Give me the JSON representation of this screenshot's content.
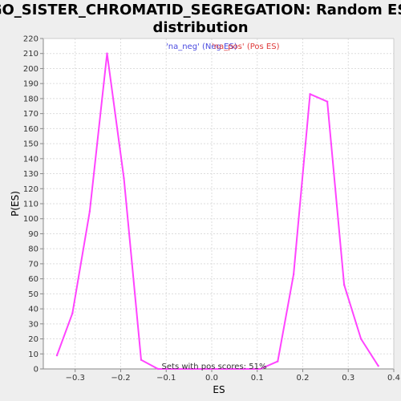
{
  "chart_data": {
    "type": "line",
    "title_line1": "GO_SISTER_CHROMATID_SEGREGATION: Random ES",
    "title_line2": "distribution",
    "xlabel": "ES",
    "ylabel": "P(ES)",
    "xlim": [
      -0.37,
      0.4
    ],
    "ylim": [
      0,
      220
    ],
    "x_ticks": [
      -0.3,
      -0.2,
      -0.1,
      0.0,
      0.1,
      0.2,
      0.3,
      0.4
    ],
    "x_tick_labels": [
      "−0.3",
      "−0.2",
      "−0.1",
      "0.0",
      "0.1",
      "0.2",
      "0.3",
      "0.4"
    ],
    "y_ticks": [
      0,
      10,
      20,
      30,
      40,
      50,
      60,
      70,
      80,
      90,
      100,
      110,
      120,
      130,
      140,
      150,
      160,
      170,
      180,
      190,
      200,
      210,
      220
    ],
    "grid": true,
    "legend": [
      {
        "label": "'na_neg' (Neg ES)",
        "color": "#4a4adf"
      },
      {
        "label": "'na_pos' (Pos ES)",
        "color": "#df3b3b"
      }
    ],
    "legend_position": "top-center",
    "series": [
      {
        "color": "#ff44ff",
        "x": [
          -0.34,
          -0.306,
          -0.268,
          -0.23,
          -0.193,
          -0.155,
          -0.118,
          -0.08,
          -0.043,
          -0.005,
          0.032,
          0.07,
          0.107,
          0.145,
          0.18,
          0.216,
          0.254,
          0.291,
          0.328,
          0.366
        ],
        "y": [
          9,
          37,
          105,
          210,
          127,
          6,
          0,
          0,
          0,
          0,
          0,
          0,
          0,
          5,
          63,
          183,
          178,
          56,
          20,
          2
        ]
      }
    ],
    "annotation": "Sets with pos scores: 51%"
  },
  "colors": {
    "page_background": "#eeeeee",
    "plot_background": "#ffffff",
    "grid": "#dddddd",
    "axis": "#888888",
    "line": "#ff44ff"
  }
}
